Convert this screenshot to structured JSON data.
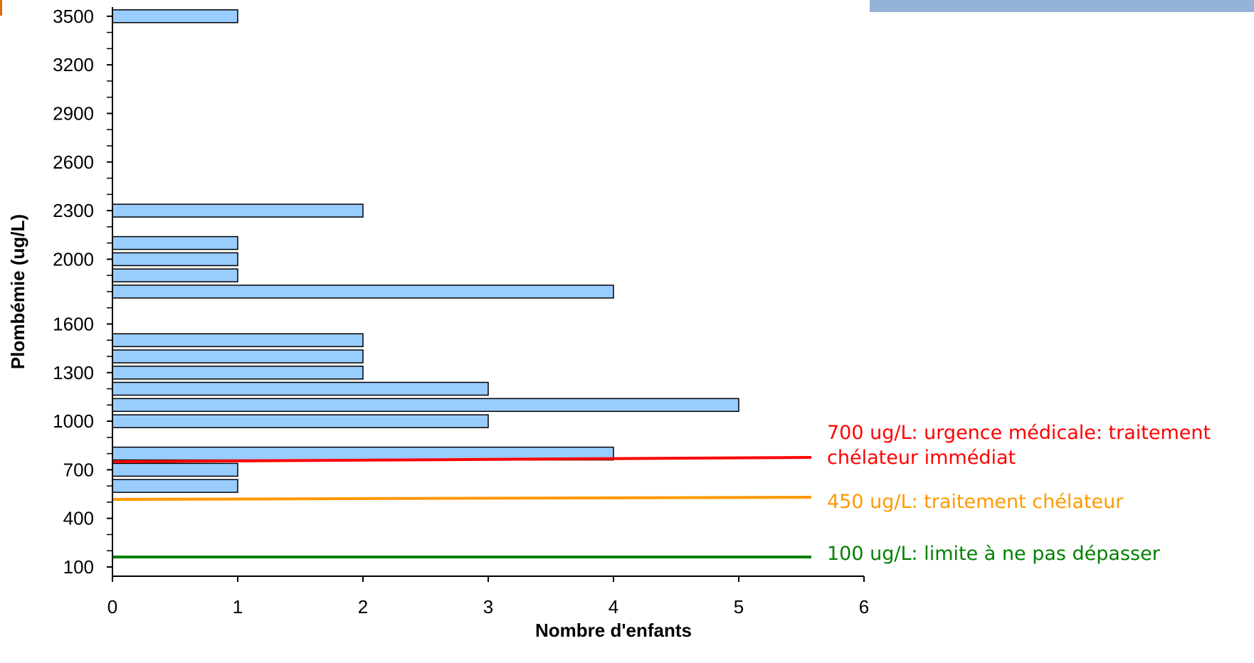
{
  "chart_data": {
    "type": "bar",
    "orientation": "horizontal",
    "xlabel": "Nombre d'enfants",
    "ylabel": "Plombémie (ug/L)",
    "xlim": [
      0,
      6
    ],
    "ylim": [
      0,
      3600
    ],
    "x_ticks": [
      "0",
      "1",
      "2",
      "3",
      "4",
      "5",
      "6"
    ],
    "y_ticks": [
      "100",
      "400",
      "700",
      "1000",
      "1300",
      "1600",
      "2000",
      "2300",
      "2600",
      "2900",
      "3200",
      "3500"
    ],
    "bar_color": "#99ccff",
    "bars": [
      {
        "y": 3500,
        "value": 1
      },
      {
        "y": 2300,
        "value": 2
      },
      {
        "y": 2100,
        "value": 1
      },
      {
        "y": 2000,
        "value": 1
      },
      {
        "y": 1900,
        "value": 1
      },
      {
        "y": 1800,
        "value": 4
      },
      {
        "y": 1500,
        "value": 2
      },
      {
        "y": 1400,
        "value": 2
      },
      {
        "y": 1300,
        "value": 2
      },
      {
        "y": 1200,
        "value": 3
      },
      {
        "y": 1100,
        "value": 5
      },
      {
        "y": 1000,
        "value": 3
      },
      {
        "y": 800,
        "value": 4
      },
      {
        "y": 700,
        "value": 1
      },
      {
        "y": 600,
        "value": 1
      }
    ],
    "thresholds": [
      {
        "color": "#ff0000",
        "lines": [
          "700 ug/L: urgence médicale: traitement",
          "chélateur immédiat"
        ]
      },
      {
        "color": "#ff9900",
        "lines": [
          "450 ug/L: traitement chélateur"
        ]
      },
      {
        "color": "#008000",
        "lines": [
          "100 ug/L: limite à ne pas dépasser"
        ]
      }
    ]
  }
}
